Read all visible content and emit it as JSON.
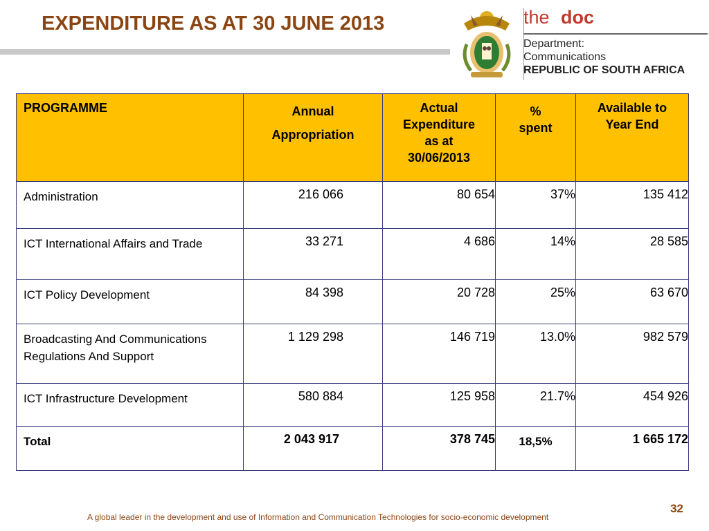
{
  "header": {
    "title": "EXPENDITURE AS AT 30 JUNE 2013"
  },
  "logo": {
    "brand_the": "the",
    "brand_doc": "doc",
    "dept_line1": "Department:",
    "dept_line2": "Communications",
    "dept_line3": "REPUBLIC OF SOUTH AFRICA",
    "crest_icon": "coat-of-arms-icon",
    "brand_color": "#c0392b"
  },
  "table": {
    "header_color": "#FFC000",
    "columns": {
      "programme": "PROGRAMME",
      "annual_l1": "Annual",
      "annual_l2": "Appropriation",
      "actual_l1": "Actual",
      "actual_l2": "Expenditure",
      "actual_l3": "as at",
      "actual_l4": "30/06/2013",
      "pct_l1": "%",
      "pct_l2": "spent",
      "avail_l1": "Available to",
      "avail_l2": "Year End"
    },
    "rows": [
      {
        "programme": "Administration",
        "annual": "216 066",
        "actual": "80 654",
        "pct": "37%",
        "available": "135 412"
      },
      {
        "programme": "ICT International Affairs and Trade",
        "annual": "33 271",
        "actual": "4 686",
        "pct": "14%",
        "available": "28 585"
      },
      {
        "programme": "ICT Policy Development",
        "annual": "84 398",
        "actual": "20 728",
        "pct": "25%",
        "available": "63 670"
      },
      {
        "programme": "Broadcasting And Communications Regulations And Support",
        "annual": "1 129 298",
        "actual": "146 719",
        "pct": "13.0%",
        "available": "982 579"
      },
      {
        "programme": "ICT Infrastructure Development",
        "annual": "580 884",
        "actual": "125 958",
        "pct": "21.7%",
        "available": "454 926"
      }
    ],
    "total": {
      "programme": "Total",
      "annual": "2 043 917",
      "actual": "378 745",
      "pct": "18,5%",
      "available": "1 665 172"
    }
  },
  "footer": {
    "page_number": "32",
    "tagline": "A global leader in the development and use of Information and Communication Technologies for socio-economic development"
  }
}
